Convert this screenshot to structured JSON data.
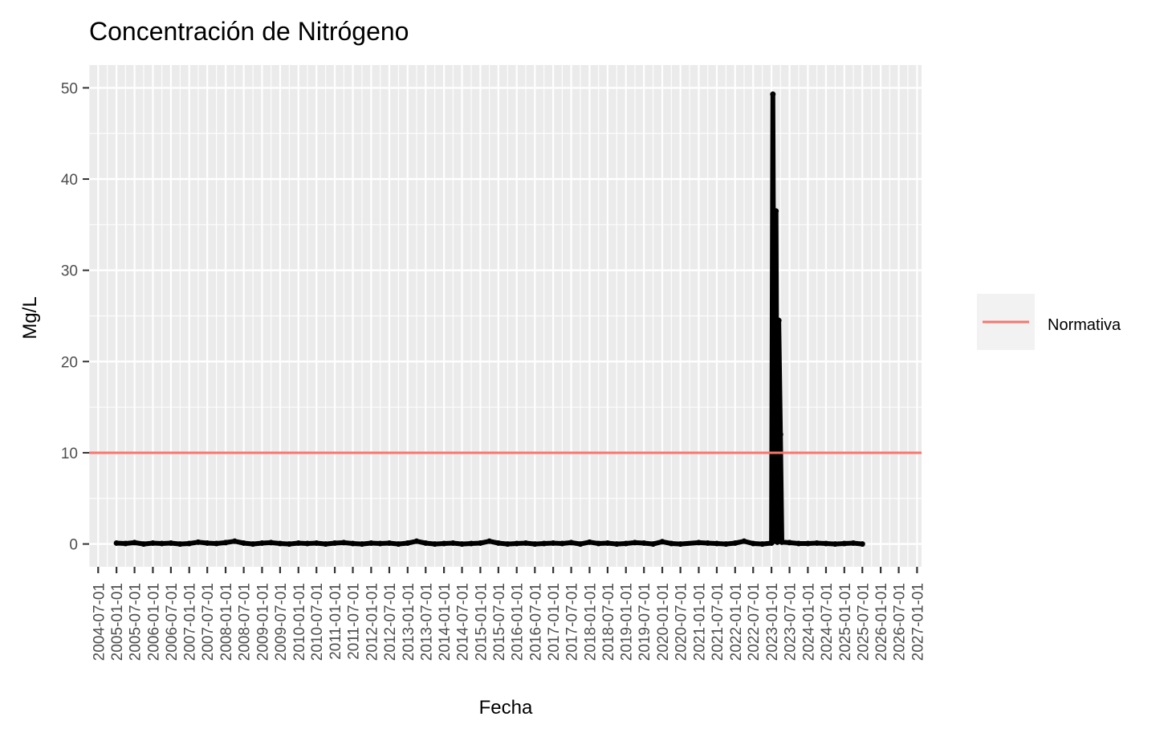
{
  "chart_data": {
    "type": "line",
    "title": "Concentración de Nitrógeno",
    "xlabel": "Fecha",
    "ylabel": "Mg/L",
    "x_range": [
      "2004-04-01",
      "2027-02-15"
    ],
    "x_ticks": [
      "2004-07-01",
      "2005-01-01",
      "2005-07-01",
      "2006-01-01",
      "2006-07-01",
      "2007-01-01",
      "2007-07-01",
      "2008-01-01",
      "2008-07-01",
      "2009-01-01",
      "2009-07-01",
      "2010-01-01",
      "2010-07-01",
      "2011-01-01",
      "2011-07-01",
      "2012-01-01",
      "2012-07-01",
      "2013-01-01",
      "2013-07-01",
      "2014-01-01",
      "2014-07-01",
      "2015-01-01",
      "2015-07-01",
      "2016-01-01",
      "2016-07-01",
      "2017-01-01",
      "2017-07-01",
      "2018-01-01",
      "2018-07-01",
      "2019-01-01",
      "2019-07-01",
      "2020-01-01",
      "2020-07-01",
      "2021-01-01",
      "2021-07-01",
      "2022-01-01",
      "2022-07-01",
      "2023-01-01",
      "2023-07-01",
      "2024-01-01",
      "2024-07-01",
      "2025-01-01",
      "2025-07-01",
      "2026-01-01",
      "2026-07-01",
      "2027-01-01"
    ],
    "ylim": [
      -2.5,
      52.5
    ],
    "y_ticks": [
      0,
      10,
      20,
      30,
      40,
      50
    ],
    "grid": true,
    "legend": {
      "position": "right",
      "entries": [
        {
          "label": "Normativa",
          "color": "#F8766D"
        }
      ]
    },
    "reference_line": {
      "name": "Normativa",
      "y": 10,
      "color": "#F8766D"
    },
    "series": [
      {
        "color": "#000000",
        "points": [
          [
            "2005-01-01",
            0.1
          ],
          [
            "2005-04-01",
            0.05
          ],
          [
            "2005-07-01",
            0.15
          ],
          [
            "2005-10-01",
            0.0
          ],
          [
            "2006-01-01",
            0.1
          ],
          [
            "2006-04-01",
            0.05
          ],
          [
            "2006-07-01",
            0.1
          ],
          [
            "2006-10-01",
            0.0
          ],
          [
            "2007-01-01",
            0.05
          ],
          [
            "2007-04-01",
            0.2
          ],
          [
            "2007-07-01",
            0.1
          ],
          [
            "2007-10-01",
            0.05
          ],
          [
            "2008-01-01",
            0.15
          ],
          [
            "2008-04-01",
            0.3
          ],
          [
            "2008-07-01",
            0.1
          ],
          [
            "2008-10-01",
            0.0
          ],
          [
            "2009-01-01",
            0.1
          ],
          [
            "2009-04-01",
            0.15
          ],
          [
            "2009-07-01",
            0.05
          ],
          [
            "2009-10-01",
            0.0
          ],
          [
            "2010-01-01",
            0.1
          ],
          [
            "2010-04-01",
            0.05
          ],
          [
            "2010-07-01",
            0.1
          ],
          [
            "2010-10-01",
            0.0
          ],
          [
            "2011-01-01",
            0.1
          ],
          [
            "2011-04-01",
            0.15
          ],
          [
            "2011-07-01",
            0.05
          ],
          [
            "2011-10-01",
            0.0
          ],
          [
            "2012-01-01",
            0.1
          ],
          [
            "2012-04-01",
            0.05
          ],
          [
            "2012-07-01",
            0.1
          ],
          [
            "2012-10-01",
            0.0
          ],
          [
            "2013-01-01",
            0.1
          ],
          [
            "2013-04-01",
            0.3
          ],
          [
            "2013-07-01",
            0.1
          ],
          [
            "2013-10-01",
            0.0
          ],
          [
            "2014-01-01",
            0.05
          ],
          [
            "2014-04-01",
            0.1
          ],
          [
            "2014-07-01",
            0.0
          ],
          [
            "2014-10-01",
            0.05
          ],
          [
            "2015-01-01",
            0.1
          ],
          [
            "2015-04-01",
            0.3
          ],
          [
            "2015-07-01",
            0.1
          ],
          [
            "2015-10-01",
            0.0
          ],
          [
            "2016-01-01",
            0.05
          ],
          [
            "2016-04-01",
            0.1
          ],
          [
            "2016-07-01",
            0.0
          ],
          [
            "2016-10-01",
            0.05
          ],
          [
            "2017-01-01",
            0.1
          ],
          [
            "2017-04-01",
            0.05
          ],
          [
            "2017-07-01",
            0.15
          ],
          [
            "2017-10-01",
            0.0
          ],
          [
            "2018-01-01",
            0.2
          ],
          [
            "2018-04-01",
            0.05
          ],
          [
            "2018-07-01",
            0.1
          ],
          [
            "2018-10-01",
            0.0
          ],
          [
            "2019-01-01",
            0.05
          ],
          [
            "2019-04-01",
            0.15
          ],
          [
            "2019-07-01",
            0.1
          ],
          [
            "2019-10-01",
            0.0
          ],
          [
            "2020-01-01",
            0.25
          ],
          [
            "2020-04-01",
            0.05
          ],
          [
            "2020-07-01",
            0.0
          ],
          [
            "2021-01-01",
            0.15
          ],
          [
            "2021-04-01",
            0.1
          ],
          [
            "2021-07-01",
            0.05
          ],
          [
            "2021-10-01",
            0.0
          ],
          [
            "2022-01-01",
            0.1
          ],
          [
            "2022-04-01",
            0.3
          ],
          [
            "2022-07-01",
            0.05
          ],
          [
            "2022-10-01",
            0.0
          ],
          [
            "2023-01-01",
            0.1
          ],
          [
            "2023-01-15",
            49.3
          ],
          [
            "2023-02-01",
            0.3
          ],
          [
            "2023-02-15",
            36.5
          ],
          [
            "2023-03-01",
            0.2
          ],
          [
            "2023-03-15",
            24.5
          ],
          [
            "2023-04-01",
            12.0
          ],
          [
            "2023-04-15",
            0.2
          ],
          [
            "2023-07-01",
            0.15
          ],
          [
            "2023-10-01",
            0.05
          ],
          [
            "2024-01-01",
            0.05
          ],
          [
            "2024-04-01",
            0.1
          ],
          [
            "2024-07-01",
            0.05
          ],
          [
            "2024-10-01",
            0.0
          ],
          [
            "2025-01-01",
            0.05
          ],
          [
            "2025-04-01",
            0.1
          ],
          [
            "2025-07-01",
            0.0
          ]
        ]
      }
    ]
  }
}
